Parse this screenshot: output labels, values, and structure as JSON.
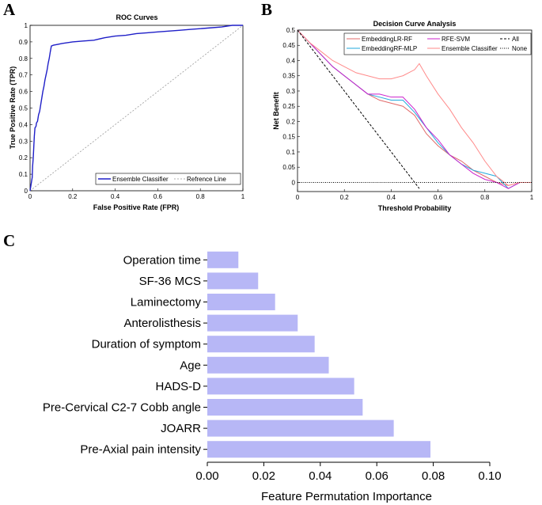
{
  "panels": {
    "a": "A",
    "b": "B",
    "c": "C"
  },
  "colors": {
    "roc": "#1f1fc8",
    "lr_rf": "#e06868",
    "rf_mlp": "#22aadd",
    "rfe_svm": "#cc22cc",
    "ensemble": "#ff8a8a",
    "bar": "#b7b7f6"
  },
  "chart_data": [
    {
      "id": "roc",
      "type": "line",
      "title": "ROC Curves",
      "xlabel": "False Positive Rate (FPR)",
      "ylabel": "True Positive Rate (TPR)",
      "xlim": [
        0,
        1
      ],
      "ylim": [
        0,
        1
      ],
      "xticks": [
        "0",
        "0.2",
        "0.4",
        "0.6",
        "0.8",
        "1"
      ],
      "yticks": [
        "0",
        "0.1",
        "0.2",
        "0.3",
        "0.4",
        "0.5",
        "0.6",
        "0.7",
        "0.8",
        "0.9",
        "1"
      ],
      "legend": [
        "Ensemble Classifier",
        "Refrence Line"
      ],
      "legend_loc": "bottom-right",
      "series": [
        {
          "name": "Ensemble Classifier",
          "x": [
            0,
            0.01,
            0.012,
            0.015,
            0.018,
            0.02,
            0.023,
            0.028,
            0.03,
            0.035,
            0.04,
            0.045,
            0.05,
            0.055,
            0.06,
            0.065,
            0.07,
            0.075,
            0.08,
            0.085,
            0.09,
            0.095,
            0.1,
            0.11,
            0.13,
            0.15,
            0.2,
            0.25,
            0.3,
            0.35,
            0.4,
            0.45,
            0.5,
            0.55,
            0.6,
            0.65,
            0.7,
            0.75,
            0.8,
            0.85,
            0.9,
            0.95,
            1.0
          ],
          "y": [
            0,
            0.08,
            0.15,
            0.2,
            0.28,
            0.33,
            0.38,
            0.39,
            0.41,
            0.42,
            0.46,
            0.48,
            0.52,
            0.56,
            0.6,
            0.63,
            0.67,
            0.7,
            0.73,
            0.77,
            0.8,
            0.84,
            0.875,
            0.88,
            0.885,
            0.89,
            0.9,
            0.905,
            0.91,
            0.925,
            0.935,
            0.94,
            0.95,
            0.955,
            0.96,
            0.965,
            0.97,
            0.975,
            0.98,
            0.985,
            0.99,
            1.0,
            1.0
          ]
        },
        {
          "name": "Refrence Line",
          "x": [
            0,
            1
          ],
          "y": [
            0,
            1
          ]
        }
      ]
    },
    {
      "id": "dca",
      "type": "line",
      "title": "Decision Curve Analysis",
      "xlabel": "Threshold Probability",
      "ylabel": "Net Benefit",
      "xlim": [
        0,
        1
      ],
      "ylim": [
        -0.03,
        0.5
      ],
      "xticks": [
        "0",
        "0.2",
        "0.4",
        "0.6",
        "0.8",
        "1"
      ],
      "yticks": [
        "0",
        "0.05",
        "0.1",
        "0.15",
        "0.2",
        "0.25",
        "0.3",
        "0.35",
        "0.4",
        "0.45",
        "0.5"
      ],
      "legend": [
        "EmbeddingLR-RF",
        "EmbeddingRF-MLP",
        "RFE-SVM",
        "Ensemble Classifier",
        "All",
        "None"
      ],
      "legend_loc": "top-right",
      "series": [
        {
          "name": "EmbeddingLR-RF",
          "x": [
            0,
            0.05,
            0.1,
            0.15,
            0.2,
            0.25,
            0.3,
            0.35,
            0.4,
            0.45,
            0.5,
            0.55,
            0.6,
            0.65,
            0.7,
            0.75,
            0.8,
            0.85,
            0.9,
            0.95,
            1.0
          ],
          "y": [
            0.5,
            0.46,
            0.42,
            0.38,
            0.35,
            0.32,
            0.29,
            0.27,
            0.26,
            0.25,
            0.22,
            0.16,
            0.12,
            0.09,
            0.07,
            0.04,
            0.02,
            0.0,
            -0.01,
            0.0,
            0.0
          ]
        },
        {
          "name": "EmbeddingRF-MLP",
          "x": [
            0,
            0.05,
            0.1,
            0.15,
            0.2,
            0.25,
            0.3,
            0.35,
            0.4,
            0.45,
            0.5,
            0.55,
            0.6,
            0.65,
            0.7,
            0.75,
            0.8,
            0.85,
            0.9,
            0.95,
            1.0
          ],
          "y": [
            0.5,
            0.46,
            0.42,
            0.38,
            0.35,
            0.32,
            0.29,
            0.28,
            0.27,
            0.27,
            0.23,
            0.18,
            0.13,
            0.09,
            0.06,
            0.04,
            0.03,
            0.02,
            -0.02,
            0.0,
            0.0
          ]
        },
        {
          "name": "RFE-SVM",
          "x": [
            0,
            0.05,
            0.1,
            0.15,
            0.2,
            0.25,
            0.3,
            0.35,
            0.4,
            0.45,
            0.5,
            0.55,
            0.6,
            0.65,
            0.7,
            0.75,
            0.8,
            0.85,
            0.9,
            0.95,
            1.0
          ],
          "y": [
            0.5,
            0.46,
            0.42,
            0.38,
            0.35,
            0.32,
            0.29,
            0.29,
            0.28,
            0.28,
            0.24,
            0.18,
            0.14,
            0.09,
            0.06,
            0.03,
            0.01,
            0.0,
            -0.02,
            0.0,
            0.0
          ]
        },
        {
          "name": "Ensemble Classifier",
          "x": [
            0,
            0.05,
            0.1,
            0.15,
            0.2,
            0.25,
            0.3,
            0.35,
            0.4,
            0.45,
            0.5,
            0.52,
            0.55,
            0.6,
            0.65,
            0.7,
            0.75,
            0.8,
            0.85,
            0.9,
            0.95,
            1.0
          ],
          "y": [
            0.5,
            0.46,
            0.43,
            0.4,
            0.38,
            0.36,
            0.35,
            0.34,
            0.34,
            0.35,
            0.37,
            0.39,
            0.35,
            0.29,
            0.24,
            0.18,
            0.13,
            0.07,
            0.02,
            -0.01,
            0.0,
            0.0
          ]
        },
        {
          "name": "All",
          "x": [
            0,
            0.5,
            0.52
          ],
          "y": [
            0.5,
            0.0,
            -0.02
          ]
        },
        {
          "name": "None",
          "x": [
            0,
            1
          ],
          "y": [
            0,
            0
          ]
        }
      ]
    },
    {
      "id": "importance",
      "type": "bar",
      "orientation": "horizontal",
      "xlabel": "Feature Permutation Importance",
      "xlim": [
        0,
        0.1
      ],
      "xticks": [
        "0.00",
        "0.02",
        "0.04",
        "0.06",
        "0.08",
        "0.10"
      ],
      "categories": [
        "Operation time",
        "SF-36 MCS",
        "Laminectomy",
        "Anterolisthesis",
        "Duration of symptom",
        "Age",
        "HADS-D",
        "Pre-Cervical C2-7 Cobb angle",
        "JOARR",
        "Pre-Axial pain intensity"
      ],
      "values": [
        0.011,
        0.018,
        0.024,
        0.032,
        0.038,
        0.043,
        0.052,
        0.055,
        0.066,
        0.079
      ]
    }
  ]
}
